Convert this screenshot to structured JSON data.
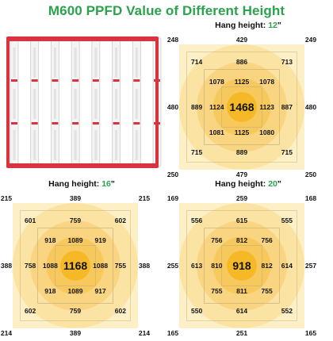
{
  "title": "M600 PPFD Value of Different Height",
  "hang_label": "Hang height: ",
  "unit": "\"",
  "colors": {
    "accent_green": "#2ba24c",
    "bg_light": "#fdf0c7",
    "ring_outer": "#fbe3a4",
    "ring_mid": "#f9d582",
    "ring_inner": "#f7c95d",
    "center": "#f5b928",
    "grid_line": "#c9b27a",
    "light_frame": "#d8333f",
    "light_bar": "#f4f4f4"
  },
  "fixture_image": {
    "icon": "grow-light-bar-fixture-icon",
    "bar_count": 8
  },
  "maps": [
    {
      "height": "12",
      "corners": [
        "248",
        "249",
        "250",
        "250"
      ],
      "edges": [
        "429",
        "480",
        "480",
        "479"
      ],
      "ring3": [
        "714",
        "886",
        "713",
        "889",
        "887",
        "715",
        "889",
        "715"
      ],
      "ring2": [
        "1078",
        "1125",
        "1078",
        "1124",
        "1123",
        "1081",
        "1125",
        "1080"
      ],
      "center": "1468"
    },
    {
      "height": "16",
      "corners": [
        "215",
        "215",
        "214",
        "214"
      ],
      "edges": [
        "389",
        "388",
        "388",
        "389"
      ],
      "ring3": [
        "601",
        "759",
        "602",
        "758",
        "755",
        "602",
        "759",
        "602"
      ],
      "ring2": [
        "918",
        "1089",
        "919",
        "1088",
        "1088",
        "918",
        "1089",
        "917"
      ],
      "center": "1168"
    },
    {
      "height": "20",
      "corners": [
        "169",
        "168",
        "165",
        "165"
      ],
      "edges": [
        "259",
        "255",
        "257",
        "251"
      ],
      "ring3": [
        "556",
        "615",
        "555",
        "613",
        "614",
        "550",
        "614",
        "552"
      ],
      "ring2": [
        "756",
        "812",
        "756",
        "810",
        "812",
        "755",
        "811",
        "755"
      ],
      "center": "918"
    }
  ]
}
